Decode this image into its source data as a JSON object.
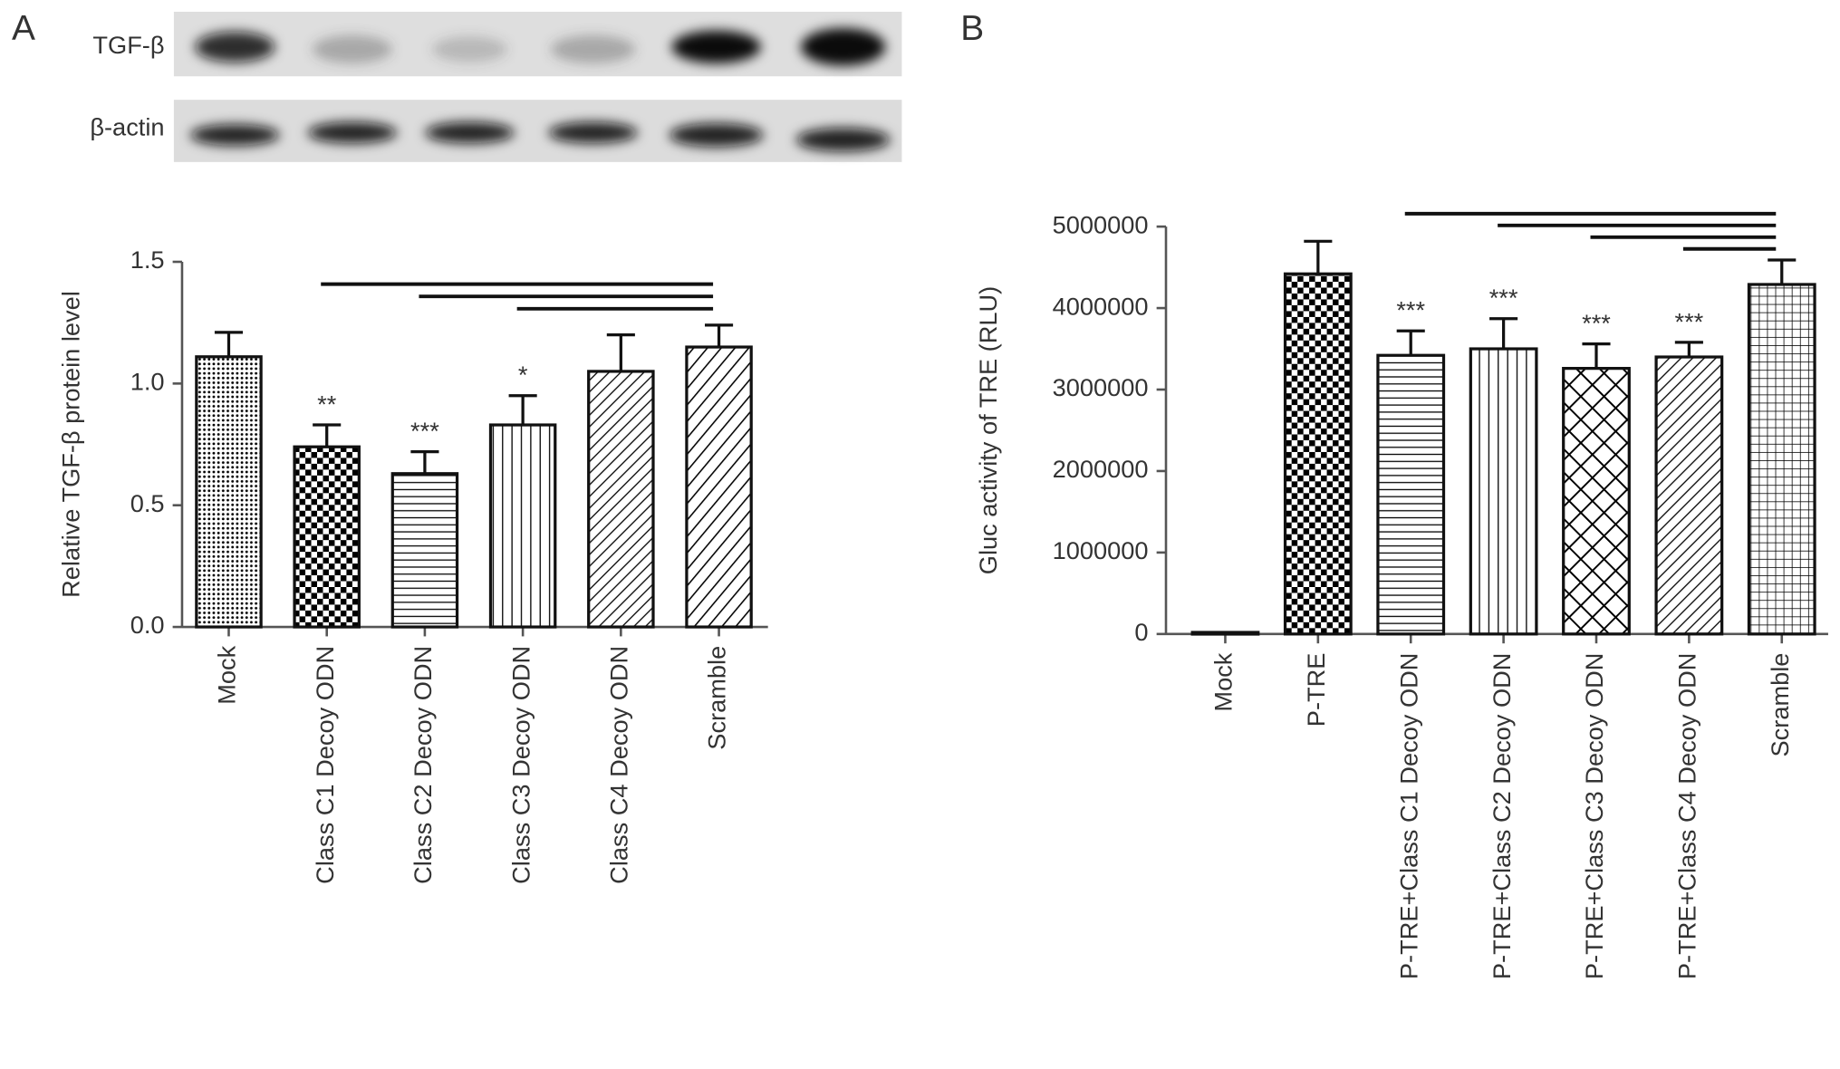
{
  "panels": [
    "A",
    "B"
  ],
  "blot": {
    "rows": [
      "TGF-β",
      "β-actin"
    ]
  },
  "chart_data": [
    {
      "type": "bar",
      "ylabel": "Relative TGF-β protein level",
      "categories": [
        "Mock",
        "Class C1 Decoy ODN",
        "Class C2 Decoy ODN",
        "Class C3 Decoy ODN",
        "Class C4 Decoy ODN",
        "Scramble"
      ],
      "values": [
        1.11,
        0.74,
        0.63,
        0.83,
        1.05,
        1.15
      ],
      "errors": [
        0.1,
        0.09,
        0.09,
        0.12,
        0.15,
        0.09
      ],
      "significance": [
        null,
        "**",
        "***",
        "*",
        null,
        null
      ],
      "patterns": [
        "dots",
        "checker",
        "hlines",
        "vlines",
        "diag",
        "diagw"
      ],
      "ylim": [
        0,
        1.5
      ],
      "yticks": [
        {
          "value": 0,
          "label": "0.0"
        },
        {
          "value": 0.5,
          "label": "0.5"
        },
        {
          "value": 1,
          "label": "1.0"
        },
        {
          "value": 1.5,
          "label": "1.5"
        }
      ]
    },
    {
      "type": "bar",
      "ylabel": "Gluc activity of TRE (RLU)",
      "categories": [
        "Mock",
        "P-TRE",
        "P-TRE+Class C1 Decoy ODN",
        "P-TRE+Class C2 Decoy ODN",
        "P-TRE+Class C3 Decoy ODN",
        "P-TRE+Class C4 Decoy ODN",
        "Scramble"
      ],
      "values": [
        20000,
        4420000,
        3420000,
        3500000,
        3260000,
        3400000,
        4290000
      ],
      "errors": [
        0,
        400000,
        300000,
        370000,
        300000,
        180000,
        300000
      ],
      "significance": [
        null,
        null,
        "***",
        "***",
        "***",
        "***",
        null
      ],
      "patterns": [
        "hlines",
        "checker",
        "hlines",
        "vlines",
        "cross",
        "diag",
        "grid"
      ],
      "ylim": [
        0,
        5000000
      ],
      "yticks": [
        0,
        1000000,
        2000000,
        3000000,
        4000000,
        5000000
      ]
    }
  ]
}
